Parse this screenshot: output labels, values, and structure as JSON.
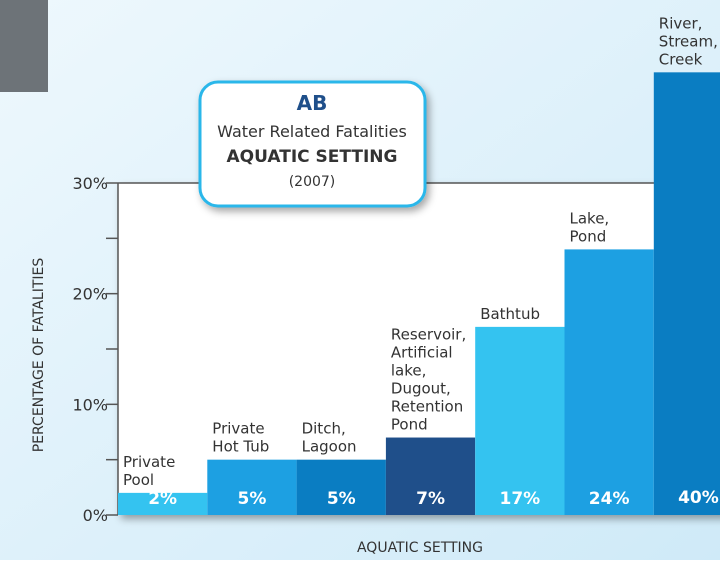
{
  "chart_data": {
    "type": "bar",
    "badge": "AB",
    "title": "Water Related Fatalities",
    "subtitle": "AQUATIC SETTING",
    "year": "(2007)",
    "xlabel": "AQUATIC SETTING",
    "ylabel": "PERCENTAGE OF FATALITIES",
    "categories": [
      [
        "Private",
        "Pool"
      ],
      [
        "Private",
        "Hot Tub"
      ],
      [
        "Ditch,",
        "Lagoon"
      ],
      [
        "Reservoir,",
        "Artificial",
        "lake,",
        "Dugout,",
        "Retention",
        "Pond"
      ],
      [
        "Bathtub"
      ],
      [
        "Lake,",
        "Pond"
      ],
      [
        "River,",
        "Stream,",
        "Creek"
      ]
    ],
    "values": [
      2,
      5,
      5,
      7,
      17,
      24,
      40
    ],
    "value_labels": [
      "2%",
      "5%",
      "5%",
      "7%",
      "17%",
      "24%",
      "40%"
    ],
    "colors": [
      "#34c3f0",
      "#1da0e2",
      "#0a7dc2",
      "#1f4f8a",
      "#34c3f0",
      "#1da0e2",
      "#0a7dc2"
    ],
    "ylim": [
      0,
      30
    ],
    "yticks": [
      {
        "value": 0,
        "label": "0%"
      },
      {
        "value": 10,
        "label": "10%"
      },
      {
        "value": 20,
        "label": "20%"
      },
      {
        "value": 30,
        "label": "30%"
      }
    ],
    "minor_yticks": [
      5,
      15,
      25
    ]
  }
}
